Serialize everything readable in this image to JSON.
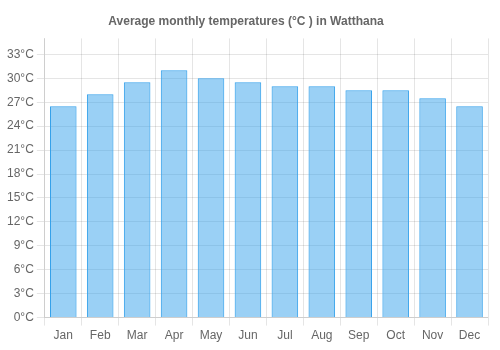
{
  "chart_data": {
    "type": "bar",
    "title": "Average monthly temperatures (°C ) in Watthana",
    "categories": [
      "Jan",
      "Feb",
      "Mar",
      "Apr",
      "May",
      "Jun",
      "Jul",
      "Aug",
      "Sep",
      "Oct",
      "Nov",
      "Dec"
    ],
    "values": [
      26.5,
      28.0,
      29.5,
      31.0,
      30.0,
      29.5,
      29.0,
      29.0,
      28.5,
      28.5,
      27.5,
      26.5
    ],
    "ylim": [
      0,
      35
    ],
    "yticks": [
      {
        "value": 0,
        "label": "0°C"
      },
      {
        "value": 3,
        "label": "3°C"
      },
      {
        "value": 6,
        "label": "6°C"
      },
      {
        "value": 9,
        "label": "9°C"
      },
      {
        "value": 12,
        "label": "12°C"
      },
      {
        "value": 15,
        "label": "15°C"
      },
      {
        "value": 18,
        "label": "18°C"
      },
      {
        "value": 21,
        "label": "21°C"
      },
      {
        "value": 24,
        "label": "24°C"
      },
      {
        "value": 27,
        "label": "27°C"
      },
      {
        "value": 30,
        "label": "30°C"
      },
      {
        "value": 33,
        "label": "33°C"
      }
    ],
    "grid": true
  }
}
